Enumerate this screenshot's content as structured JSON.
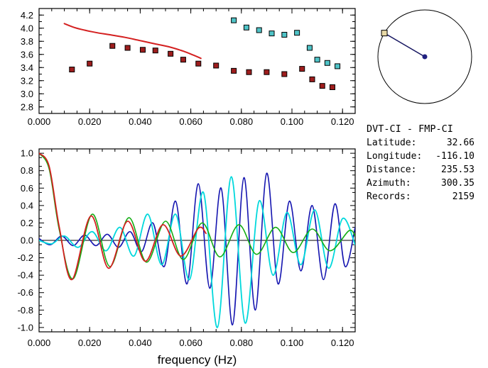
{
  "info": {
    "pair": "DVT-CI - FMP-CI",
    "rows": [
      {
        "label": "Latitude:",
        "value": "32.66"
      },
      {
        "label": "Longitude:",
        "value": "-116.10"
      },
      {
        "label": "Distance:",
        "value": "235.53"
      },
      {
        "label": "Azimuth:",
        "value": "300.35"
      },
      {
        "label": "Records:",
        "value": "2159"
      }
    ]
  },
  "dial": {
    "azimuth_deg": 300.35,
    "circle_color": "#000000",
    "line_color": "#151560",
    "marker_fill": "#e8d9a6",
    "center_color": "#202080"
  },
  "colors": {
    "axis": "#000000",
    "red": "#d42020",
    "dark_red_marker": "#9e1d1d",
    "cyan_marker": "#4fc3c7",
    "blue_wave": "#1515b0",
    "cyan_wave": "#00d8dc",
    "green_wave": "#14ad14"
  },
  "chart_data": [
    {
      "id": "dispersion",
      "type": "scatter",
      "title": "",
      "xlabel": "",
      "ylabel": "",
      "xlim": [
        0,
        0.125
      ],
      "ylim": [
        2.7,
        4.3
      ],
      "xticks": [
        0,
        0.02,
        0.04,
        0.06,
        0.08,
        0.1,
        0.12
      ],
      "xtick_labels": [
        "0.000",
        "0.020",
        "0.040",
        "0.060",
        "0.080",
        "0.100",
        "0.120"
      ],
      "yticks": [
        2.8,
        3.0,
        3.2,
        3.4,
        3.6,
        3.8,
        4.0,
        4.2
      ],
      "ytick_labels": [
        "2.8",
        "3.0",
        "3.2",
        "3.4",
        "3.6",
        "3.8",
        "4.0",
        "4.2"
      ],
      "x_minor": 0.005,
      "y_minor": 0.1,
      "grid": false,
      "series": [
        {
          "name": "phase-velocity-fit",
          "kind": "line",
          "color": "#d42020",
          "width": 2,
          "points": [
            [
              0.01,
              4.07
            ],
            [
              0.014,
              4.01
            ],
            [
              0.018,
              3.97
            ],
            [
              0.023,
              3.93
            ],
            [
              0.028,
              3.9
            ],
            [
              0.034,
              3.86
            ],
            [
              0.04,
              3.81
            ],
            [
              0.046,
              3.76
            ],
            [
              0.052,
              3.71
            ],
            [
              0.057,
              3.65
            ],
            [
              0.061,
              3.59
            ],
            [
              0.064,
              3.54
            ]
          ]
        },
        {
          "name": "group-velocity-measurements",
          "kind": "squares",
          "color": "#9e1d1d",
          "points": [
            [
              0.013,
              3.37
            ],
            [
              0.02,
              3.46
            ],
            [
              0.029,
              3.73
            ],
            [
              0.035,
              3.7
            ],
            [
              0.041,
              3.67
            ],
            [
              0.046,
              3.66
            ],
            [
              0.052,
              3.61
            ],
            [
              0.057,
              3.52
            ],
            [
              0.063,
              3.46
            ],
            [
              0.07,
              3.43
            ],
            [
              0.077,
              3.35
            ],
            [
              0.083,
              3.33
            ],
            [
              0.09,
              3.33
            ],
            [
              0.097,
              3.3
            ],
            [
              0.104,
              3.38
            ],
            [
              0.108,
              3.22
            ],
            [
              0.112,
              3.12
            ],
            [
              0.116,
              3.1
            ]
          ]
        },
        {
          "name": "phase-velocity-measurements",
          "kind": "squares",
          "color": "#4fc3c7",
          "points": [
            [
              0.077,
              4.12
            ],
            [
              0.082,
              4.01
            ],
            [
              0.087,
              3.97
            ],
            [
              0.092,
              3.92
            ],
            [
              0.097,
              3.9
            ],
            [
              0.102,
              3.93
            ],
            [
              0.107,
              3.7
            ],
            [
              0.11,
              3.52
            ],
            [
              0.114,
              3.47
            ],
            [
              0.118,
              3.42
            ]
          ]
        }
      ]
    },
    {
      "id": "spectra",
      "type": "line",
      "title": "",
      "xlabel": "frequency (Hz)",
      "ylabel": "",
      "xlim": [
        0,
        0.125
      ],
      "ylim": [
        -1.05,
        1.05
      ],
      "xticks": [
        0,
        0.02,
        0.04,
        0.06,
        0.08,
        0.1,
        0.12
      ],
      "xtick_labels": [
        "0.000",
        "0.020",
        "0.040",
        "0.060",
        "0.080",
        "0.100",
        "0.120"
      ],
      "yticks": [
        -1.0,
        -0.8,
        -0.6,
        -0.4,
        -0.2,
        0.0,
        0.2,
        0.4,
        0.6,
        0.8,
        1.0
      ],
      "ytick_labels": [
        "-1.0",
        "-0.8",
        "-0.6",
        "-0.4",
        "-0.2",
        "0.0",
        "0.2",
        "0.4",
        "0.6",
        "0.8",
        "1.0"
      ],
      "x_minor": 0.005,
      "y_minor": 0.1,
      "zero_line": true,
      "grid": false,
      "series": [
        {
          "name": "observed-spectrum-blue",
          "kind": "line",
          "color": "#1515b0",
          "width": 1.6,
          "points": [
            [
              0.0,
              0.02
            ],
            [
              0.0045,
              -0.05
            ],
            [
              0.009,
              0.05
            ],
            [
              0.0135,
              -0.06
            ],
            [
              0.018,
              0.06
            ],
            [
              0.0225,
              -0.06
            ],
            [
              0.027,
              0.07
            ],
            [
              0.0315,
              -0.08
            ],
            [
              0.036,
              0.1
            ],
            [
              0.0405,
              -0.13
            ],
            [
              0.045,
              0.2
            ],
            [
              0.0495,
              -0.3
            ],
            [
              0.054,
              0.45
            ],
            [
              0.0585,
              -0.5
            ],
            [
              0.063,
              0.65
            ],
            [
              0.0675,
              -0.55
            ],
            [
              0.072,
              0.6
            ],
            [
              0.0765,
              -0.97
            ],
            [
              0.081,
              0.72
            ],
            [
              0.0855,
              -0.8
            ],
            [
              0.09,
              0.77
            ],
            [
              0.0945,
              -0.5
            ],
            [
              0.099,
              0.45
            ],
            [
              0.1035,
              -0.35
            ],
            [
              0.108,
              0.4
            ],
            [
              0.1125,
              -0.45
            ],
            [
              0.117,
              0.42
            ],
            [
              0.121,
              -0.3
            ],
            [
              0.125,
              0.15
            ]
          ]
        },
        {
          "name": "observed-spectrum-cyan",
          "kind": "line",
          "color": "#00d8dc",
          "width": 1.8,
          "points": [
            [
              0.0,
              0.0
            ],
            [
              0.005,
              -0.04
            ],
            [
              0.01,
              0.05
            ],
            [
              0.0155,
              -0.08
            ],
            [
              0.021,
              0.1
            ],
            [
              0.0265,
              -0.12
            ],
            [
              0.032,
              0.15
            ],
            [
              0.0375,
              -0.18
            ],
            [
              0.043,
              0.3
            ],
            [
              0.0485,
              -0.28
            ],
            [
              0.054,
              0.3
            ],
            [
              0.0595,
              -0.45
            ],
            [
              0.065,
              0.55
            ],
            [
              0.0705,
              -1.0
            ],
            [
              0.076,
              0.73
            ],
            [
              0.0815,
              -0.95
            ],
            [
              0.087,
              0.45
            ],
            [
              0.0925,
              -0.4
            ],
            [
              0.098,
              0.32
            ],
            [
              0.1035,
              -0.28
            ],
            [
              0.109,
              0.35
            ],
            [
              0.1145,
              -0.32
            ],
            [
              0.12,
              0.25
            ],
            [
              0.125,
              -0.05
            ]
          ]
        },
        {
          "name": "bessel-fit-green",
          "kind": "line",
          "color": "#14ad14",
          "width": 1.6,
          "points": [
            [
              0.0,
              1.0
            ],
            [
              0.004,
              0.82
            ],
            [
              0.008,
              0.12
            ],
            [
              0.0135,
              -0.44
            ],
            [
              0.021,
              0.3
            ],
            [
              0.028,
              -0.3
            ],
            [
              0.0355,
              0.26
            ],
            [
              0.0425,
              -0.25
            ],
            [
              0.05,
              0.22
            ],
            [
              0.057,
              -0.22
            ],
            [
              0.0645,
              0.2
            ],
            [
              0.0715,
              -0.19
            ],
            [
              0.079,
              0.18
            ],
            [
              0.086,
              -0.16
            ],
            [
              0.0935,
              0.15
            ],
            [
              0.1005,
              -0.14
            ],
            [
              0.108,
              0.13
            ],
            [
              0.115,
              -0.12
            ],
            [
              0.1225,
              0.11
            ],
            [
              0.125,
              0.05
            ]
          ]
        },
        {
          "name": "bessel-fit-red",
          "kind": "line",
          "color": "#d42020",
          "width": 1.8,
          "points": [
            [
              0.0,
              1.0
            ],
            [
              0.004,
              0.85
            ],
            [
              0.008,
              0.15
            ],
            [
              0.013,
              -0.45
            ],
            [
              0.0205,
              0.28
            ],
            [
              0.0275,
              -0.32
            ],
            [
              0.035,
              0.22
            ],
            [
              0.042,
              -0.24
            ],
            [
              0.049,
              0.18
            ],
            [
              0.056,
              -0.18
            ],
            [
              0.063,
              0.14
            ],
            [
              0.066,
              0.08
            ]
          ]
        }
      ]
    }
  ]
}
